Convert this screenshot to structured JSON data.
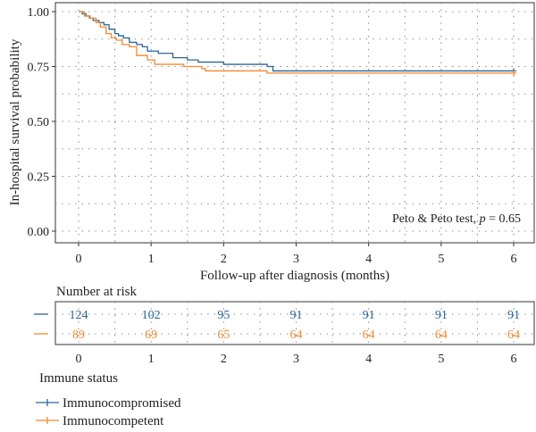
{
  "chart_data": {
    "type": "line",
    "subtype": "kaplan-meier",
    "xlabel": "Follow-up after diagnosis (months)",
    "ylabel": "In-hospital survival probability",
    "xlim": [
      0,
      6
    ],
    "ylim": [
      0,
      1
    ],
    "x_ticks": [
      0,
      1,
      2,
      3,
      4,
      5,
      6
    ],
    "y_ticks": [
      "0.00",
      "0.25",
      "0.50",
      "0.75",
      "1.00"
    ],
    "grid": true,
    "annotation": {
      "prefix": "Peto & Peto test, ",
      "pvar": "p",
      "suffix": " = 0.65"
    },
    "series": [
      {
        "name": "Immunocompromised",
        "color": "#2a6496",
        "steps": [
          [
            0,
            1.0
          ],
          [
            0.05,
            0.99
          ],
          [
            0.1,
            0.98
          ],
          [
            0.15,
            0.97
          ],
          [
            0.2,
            0.96
          ],
          [
            0.28,
            0.95
          ],
          [
            0.35,
            0.94
          ],
          [
            0.42,
            0.92
          ],
          [
            0.5,
            0.9
          ],
          [
            0.55,
            0.89
          ],
          [
            0.62,
            0.88
          ],
          [
            0.7,
            0.86
          ],
          [
            0.8,
            0.85
          ],
          [
            0.88,
            0.84
          ],
          [
            0.95,
            0.82
          ],
          [
            1.1,
            0.81
          ],
          [
            1.3,
            0.79
          ],
          [
            1.5,
            0.78
          ],
          [
            1.65,
            0.77
          ],
          [
            2.0,
            0.76
          ],
          [
            2.6,
            0.75
          ],
          [
            2.68,
            0.73
          ],
          [
            6.0,
            0.73
          ]
        ]
      },
      {
        "name": "Immunocompetent",
        "color": "#f28a30",
        "steps": [
          [
            0,
            1.0
          ],
          [
            0.08,
            0.98
          ],
          [
            0.16,
            0.97
          ],
          [
            0.24,
            0.95
          ],
          [
            0.3,
            0.93
          ],
          [
            0.38,
            0.9
          ],
          [
            0.45,
            0.88
          ],
          [
            0.52,
            0.87
          ],
          [
            0.6,
            0.85
          ],
          [
            0.7,
            0.84
          ],
          [
            0.8,
            0.8
          ],
          [
            0.95,
            0.78
          ],
          [
            1.05,
            0.76
          ],
          [
            1.45,
            0.75
          ],
          [
            1.7,
            0.74
          ],
          [
            1.75,
            0.73
          ],
          [
            2.6,
            0.72
          ],
          [
            6.0,
            0.72
          ]
        ]
      }
    ]
  },
  "risk_table": {
    "title": "Number at risk",
    "times": [
      0,
      1,
      2,
      3,
      4,
      5,
      6
    ],
    "rows": [
      {
        "color": "#2a6496",
        "values": [
          124,
          102,
          95,
          91,
          91,
          91,
          91
        ]
      },
      {
        "color": "#f28a30",
        "values": [
          89,
          69,
          65,
          64,
          64,
          64,
          64
        ]
      }
    ]
  },
  "legend": {
    "title": "Immune status",
    "items": [
      {
        "label": "Immunocompromised",
        "color": "#2a6496"
      },
      {
        "label": "Immunocompetent",
        "color": "#f28a30"
      }
    ]
  }
}
